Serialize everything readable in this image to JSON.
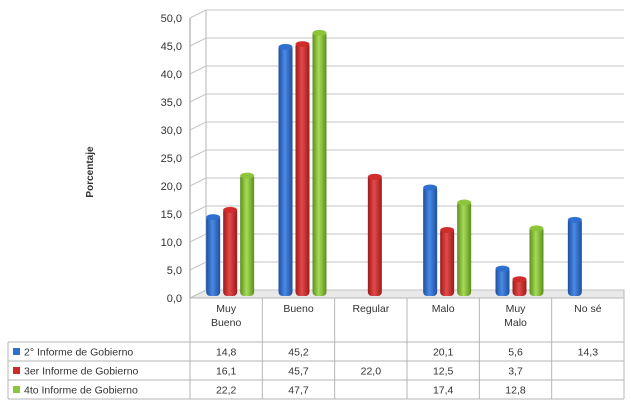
{
  "chart_data": {
    "type": "bar",
    "title": "",
    "ylabel": "Porcentaje",
    "xlabel": "",
    "ylim": [
      0,
      50
    ],
    "ytick_step": 5,
    "ytick_labels": [
      "0,0",
      "5,0",
      "10,0",
      "15,0",
      "20,0",
      "25,0",
      "30,0",
      "35,0",
      "40,0",
      "45,0",
      "50,0"
    ],
    "categories": [
      [
        "Muy",
        "Bueno"
      ],
      [
        "Bueno"
      ],
      [
        "Regular"
      ],
      [
        "Malo"
      ],
      [
        "Muy",
        "Malo"
      ],
      [
        "No sé"
      ]
    ],
    "series": [
      {
        "name": "2° Informe de Gobierno",
        "color": "#2e6fd0",
        "values": [
          14.8,
          45.2,
          null,
          20.1,
          5.6,
          14.3
        ],
        "labels": [
          "14,8",
          "45,2",
          "",
          "20,1",
          "5,6",
          "14,3"
        ]
      },
      {
        "name": "3er Informe de Gobierno",
        "color": "#d02b2b",
        "values": [
          16.1,
          45.7,
          22.0,
          12.5,
          3.7,
          null
        ],
        "labels": [
          "16,1",
          "45,7",
          "22,0",
          "12,5",
          "3,7",
          ""
        ]
      },
      {
        "name": "4to Informe de Gobierno",
        "color": "#8cc43a",
        "values": [
          22.2,
          47.7,
          null,
          17.4,
          12.8,
          null
        ],
        "labels": [
          "22,2",
          "47,7",
          "",
          "17,4",
          "12,8",
          ""
        ]
      }
    ],
    "grid": true,
    "legend": "table-left"
  }
}
